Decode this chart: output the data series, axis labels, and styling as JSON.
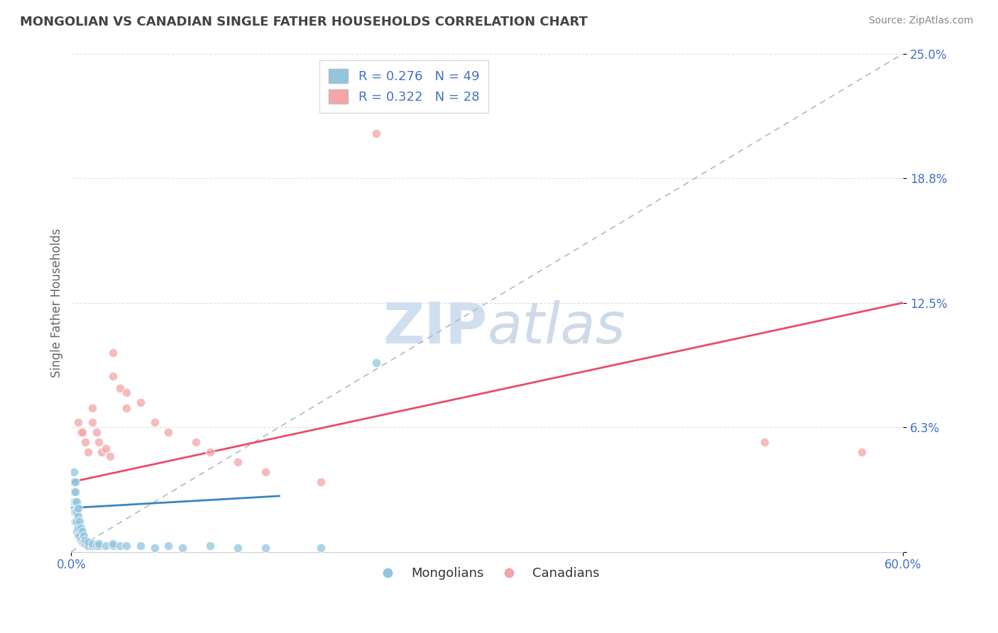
{
  "title": "MONGOLIAN VS CANADIAN SINGLE FATHER HOUSEHOLDS CORRELATION CHART",
  "source": "Source: ZipAtlas.com",
  "ylabel": "Single Father Households",
  "xlim": [
    0.0,
    0.6
  ],
  "ylim": [
    0.0,
    0.25
  ],
  "ytick_vals": [
    0.0,
    0.0625,
    0.125,
    0.1875,
    0.25
  ],
  "ytick_labels": [
    "",
    "6.3%",
    "12.5%",
    "18.8%",
    "25.0%"
  ],
  "R_mongolian": 0.276,
  "N_mongolian": 49,
  "R_canadian": 0.322,
  "N_canadian": 28,
  "blue_color": "#92c5de",
  "pink_color": "#f4a5a5",
  "trend_blue": "#3a85c0",
  "trend_pink": "#e84c6a",
  "watermark_color": "#d0dff0",
  "background_color": "#ffffff",
  "grid_color": "#e0e0e0",
  "title_color": "#444444",
  "axis_label_color": "#666666",
  "tick_color": "#4472c4",
  "source_color": "#888888",
  "legend_box_color": "#cccccc",
  "mongolian_x": [
    0.002,
    0.002,
    0.002,
    0.002,
    0.002,
    0.003,
    0.003,
    0.003,
    0.003,
    0.003,
    0.004,
    0.004,
    0.004,
    0.004,
    0.005,
    0.005,
    0.005,
    0.005,
    0.006,
    0.006,
    0.007,
    0.007,
    0.008,
    0.008,
    0.009,
    0.009,
    0.01,
    0.01,
    0.012,
    0.012,
    0.015,
    0.015,
    0.018,
    0.02,
    0.02,
    0.025,
    0.03,
    0.03,
    0.035,
    0.04,
    0.05,
    0.06,
    0.07,
    0.08,
    0.1,
    0.12,
    0.14,
    0.18,
    0.22
  ],
  "mongolian_y": [
    0.02,
    0.025,
    0.03,
    0.035,
    0.04,
    0.015,
    0.02,
    0.025,
    0.03,
    0.035,
    0.01,
    0.015,
    0.02,
    0.025,
    0.008,
    0.012,
    0.018,
    0.022,
    0.008,
    0.015,
    0.006,
    0.012,
    0.005,
    0.01,
    0.005,
    0.008,
    0.004,
    0.006,
    0.003,
    0.005,
    0.003,
    0.004,
    0.003,
    0.003,
    0.004,
    0.003,
    0.003,
    0.004,
    0.003,
    0.003,
    0.003,
    0.002,
    0.003,
    0.002,
    0.003,
    0.002,
    0.002,
    0.002,
    0.095
  ],
  "canadian_x": [
    0.005,
    0.007,
    0.008,
    0.01,
    0.012,
    0.015,
    0.015,
    0.018,
    0.02,
    0.022,
    0.025,
    0.028,
    0.03,
    0.03,
    0.035,
    0.04,
    0.04,
    0.05,
    0.06,
    0.07,
    0.09,
    0.1,
    0.12,
    0.14,
    0.18,
    0.22,
    0.5,
    0.57
  ],
  "canadian_y": [
    0.065,
    0.06,
    0.06,
    0.055,
    0.05,
    0.072,
    0.065,
    0.06,
    0.055,
    0.05,
    0.052,
    0.048,
    0.1,
    0.088,
    0.082,
    0.08,
    0.072,
    0.075,
    0.065,
    0.06,
    0.055,
    0.05,
    0.045,
    0.04,
    0.035,
    0.21,
    0.055,
    0.05
  ],
  "diag_line_end_x": 0.6,
  "diag_line_end_y": 0.25,
  "pink_trend_x0": 0.0,
  "pink_trend_y0": 0.035,
  "pink_trend_x1": 0.6,
  "pink_trend_y1": 0.125,
  "blue_trend_x0": 0.0,
  "blue_trend_y0": 0.022,
  "blue_trend_x1": 0.15,
  "blue_trend_y1": 0.028
}
